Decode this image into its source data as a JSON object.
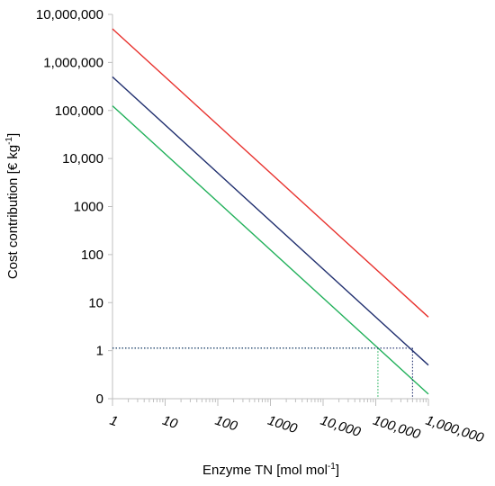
{
  "chart_data": {
    "type": "line",
    "title": "",
    "x_scale": "log",
    "y_scale": "log",
    "xlabel": {
      "main": "Enzyme TN [mol mol",
      "sup": "-1",
      "end": "]"
    },
    "ylabel": {
      "main": "Cost contribution [€  kg",
      "sup": "-1",
      "end": "]"
    },
    "xlim": [
      1,
      1000000
    ],
    "y_ticks": [
      {
        "value": 0.1,
        "label": "0"
      },
      {
        "value": 1,
        "label": "1"
      },
      {
        "value": 10,
        "label": "10"
      },
      {
        "value": 100,
        "label": "100"
      },
      {
        "value": 1000,
        "label": "1000"
      },
      {
        "value": 10000,
        "label": "10,000"
      },
      {
        "value": 100000,
        "label": "100,000"
      },
      {
        "value": 1000000,
        "label": "1,000,000"
      },
      {
        "value": 10000000,
        "label": "10,000,000"
      }
    ],
    "x_ticks": [
      {
        "value": 1,
        "label": "1"
      },
      {
        "value": 10,
        "label": "10"
      },
      {
        "value": 100,
        "label": "100"
      },
      {
        "value": 1000,
        "label": "1000"
      },
      {
        "value": 10000,
        "label": "10,000"
      },
      {
        "value": 100000,
        "label": "100,000"
      },
      {
        "value": 1000000,
        "label": "1,000,000"
      }
    ],
    "grid": false,
    "legend": "none",
    "series": [
      {
        "color": "#e8322e",
        "x": [
          1,
          1000000
        ],
        "y": [
          5000000,
          5
        ]
      },
      {
        "color": "#1f2e6e",
        "x": [
          1,
          1000000
        ],
        "y": [
          500000,
          0.5
        ]
      },
      {
        "color": "#21b05a",
        "x": [
          1,
          1000000
        ],
        "y": [
          125000,
          0.125
        ]
      }
    ],
    "reference_lines": [
      {
        "color": "#21b05a",
        "x": 110000,
        "y": 1.13
      },
      {
        "color": "#1f2e6e",
        "x": 500000,
        "y": 1.13
      }
    ]
  }
}
